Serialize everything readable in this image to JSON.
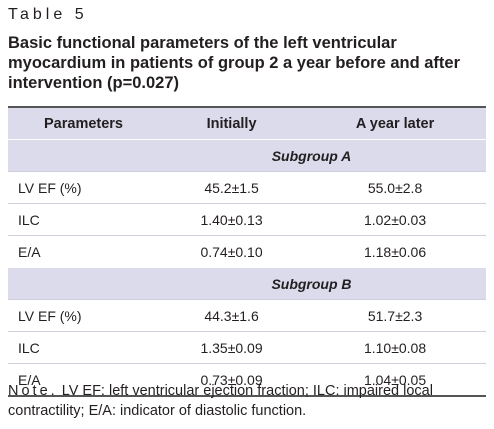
{
  "header": {
    "label": "Table 5",
    "title": "Basic functional parameters of the left ventricular myocardium in patients of group 2 a year before and after intervention (p=0.027)"
  },
  "table": {
    "columns": [
      "Parameters",
      "Initially",
      "A year later"
    ],
    "sections": [
      {
        "subgroup": "Subgroup A",
        "rows": [
          [
            "LV EF (%)",
            "45.2±1.5",
            "55.0±2.8"
          ],
          [
            "ILC",
            "1.40±0.13",
            "1.02±0.03"
          ],
          [
            "E/A",
            "0.74±0.10",
            "1.18±0.06"
          ]
        ]
      },
      {
        "subgroup": "Subgroup B",
        "rows": [
          [
            "LV EF (%)",
            "44.3±1.6",
            "51.7±2.3"
          ],
          [
            "ILC",
            "1.35±0.09",
            "1.10±0.08"
          ],
          [
            "E/A",
            "0.73±0.09",
            "1.04±0.05"
          ]
        ]
      }
    ]
  },
  "note": {
    "label": "Note.",
    "text": "LV EF: left ventricular ejection fraction; ILC: impaired local contractility; E/A: indicator of diastolic function."
  }
}
